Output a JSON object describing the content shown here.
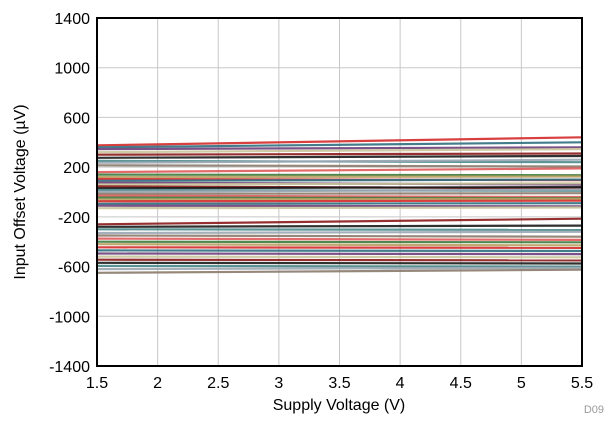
{
  "figure_id": "D09",
  "chart_data": {
    "type": "line",
    "xlabel": "Supply Voltage (V)",
    "ylabel": "Input Offset Voltage (µV)",
    "xlim": [
      1.5,
      5.5
    ],
    "ylim": [
      -1400,
      1400
    ],
    "x_ticks": [
      1.5,
      2,
      2.5,
      3,
      3.5,
      4,
      4.5,
      5,
      5.5
    ],
    "x_tick_labels": [
      "1.5",
      "2",
      "2.5",
      "3",
      "3.5",
      "4",
      "4.5",
      "5",
      "5.5"
    ],
    "y_ticks": [
      1400,
      1000,
      600,
      200,
      -200,
      -600,
      -1000,
      -1400
    ],
    "y_tick_labels": [
      "1400",
      "1000",
      "600",
      "200",
      "-200",
      "-600",
      "-1000",
      "-1400"
    ],
    "grid": true,
    "legend": "none",
    "series_colors": [
      "#d42a2a",
      "#2f6f80",
      "#6b3f7a",
      "#c8c49a",
      "#8b1a1a",
      "#1a1a1a",
      "#4a8a8a",
      "#9aa6b2",
      "#8a7a6a",
      "#e05a5a",
      "#3c7a3c",
      "#b8a060"
    ],
    "series": [
      {
        "x": [
          1.5,
          5.5
        ],
        "y": [
          375,
          440
        ]
      },
      {
        "x": [
          1.5,
          5.5
        ],
        "y": [
          360,
          400
        ]
      },
      {
        "x": [
          1.5,
          5.5
        ],
        "y": [
          345,
          360
        ]
      },
      {
        "x": [
          1.5,
          5.5
        ],
        "y": [
          320,
          345
        ]
      },
      {
        "x": [
          1.5,
          5.5
        ],
        "y": [
          300,
          310
        ]
      },
      {
        "x": [
          1.5,
          5.5
        ],
        "y": [
          275,
          290
        ]
      },
      {
        "x": [
          1.5,
          5.5
        ],
        "y": [
          250,
          240
        ]
      },
      {
        "x": [
          1.5,
          5.5
        ],
        "y": [
          235,
          260
        ]
      },
      {
        "x": [
          1.5,
          5.5
        ],
        "y": [
          215,
          205
        ]
      },
      {
        "x": [
          1.5,
          5.5
        ],
        "y": [
          160,
          190
        ]
      },
      {
        "x": [
          1.5,
          5.5
        ],
        "y": [
          140,
          135
        ]
      },
      {
        "x": [
          1.5,
          5.5
        ],
        "y": [
          120,
          125
        ]
      },
      {
        "x": [
          1.5,
          5.5
        ],
        "y": [
          105,
          95
        ]
      },
      {
        "x": [
          1.5,
          5.5
        ],
        "y": [
          90,
          100
        ]
      },
      {
        "x": [
          1.5,
          5.5
        ],
        "y": [
          75,
          60
        ]
      },
      {
        "x": [
          1.5,
          5.5
        ],
        "y": [
          60,
          70
        ]
      },
      {
        "x": [
          1.5,
          5.5
        ],
        "y": [
          45,
          30
        ]
      },
      {
        "x": [
          1.5,
          5.5
        ],
        "y": [
          30,
          40
        ]
      },
      {
        "x": [
          1.5,
          5.5
        ],
        "y": [
          15,
          10
        ]
      },
      {
        "x": [
          1.5,
          5.5
        ],
        "y": [
          0,
          20
        ]
      },
      {
        "x": [
          1.5,
          5.5
        ],
        "y": [
          -15,
          -10
        ]
      },
      {
        "x": [
          1.5,
          5.5
        ],
        "y": [
          -30,
          -40
        ]
      },
      {
        "x": [
          1.5,
          5.5
        ],
        "y": [
          -45,
          -50
        ]
      },
      {
        "x": [
          1.5,
          5.5
        ],
        "y": [
          -60,
          -55
        ]
      },
      {
        "x": [
          1.5,
          5.5
        ],
        "y": [
          -75,
          -70
        ]
      },
      {
        "x": [
          1.5,
          5.5
        ],
        "y": [
          -95,
          -90
        ]
      },
      {
        "x": [
          1.5,
          5.5
        ],
        "y": [
          -110,
          -115
        ]
      },
      {
        "x": [
          1.5,
          5.5
        ],
        "y": [
          -130,
          -125
        ]
      },
      {
        "x": [
          1.5,
          5.5
        ],
        "y": [
          -260,
          -215
        ]
      },
      {
        "x": [
          1.5,
          5.5
        ],
        "y": [
          -280,
          -270
        ]
      },
      {
        "x": [
          1.5,
          5.5
        ],
        "y": [
          -300,
          -305
        ]
      },
      {
        "x": [
          1.5,
          5.5
        ],
        "y": [
          -330,
          -320
        ]
      },
      {
        "x": [
          1.5,
          5.5
        ],
        "y": [
          -350,
          -360
        ]
      },
      {
        "x": [
          1.5,
          5.5
        ],
        "y": [
          -375,
          -385
        ]
      },
      {
        "x": [
          1.5,
          5.5
        ],
        "y": [
          -400,
          -405
        ]
      },
      {
        "x": [
          1.5,
          5.5
        ],
        "y": [
          -420,
          -430
        ]
      },
      {
        "x": [
          1.5,
          5.5
        ],
        "y": [
          -445,
          -450
        ]
      },
      {
        "x": [
          1.5,
          5.5
        ],
        "y": [
          -470,
          -475
        ]
      },
      {
        "x": [
          1.5,
          5.5
        ],
        "y": [
          -495,
          -500
        ]
      },
      {
        "x": [
          1.5,
          5.5
        ],
        "y": [
          -520,
          -525
        ]
      },
      {
        "x": [
          1.5,
          5.5
        ],
        "y": [
          -545,
          -550
        ]
      },
      {
        "x": [
          1.5,
          5.5
        ],
        "y": [
          -570,
          -575
        ]
      },
      {
        "x": [
          1.5,
          5.5
        ],
        "y": [
          -595,
          -600
        ]
      },
      {
        "x": [
          1.5,
          5.5
        ],
        "y": [
          -620,
          -610
        ]
      },
      {
        "x": [
          1.5,
          5.5
        ],
        "y": [
          -650,
          -625
        ]
      }
    ]
  }
}
